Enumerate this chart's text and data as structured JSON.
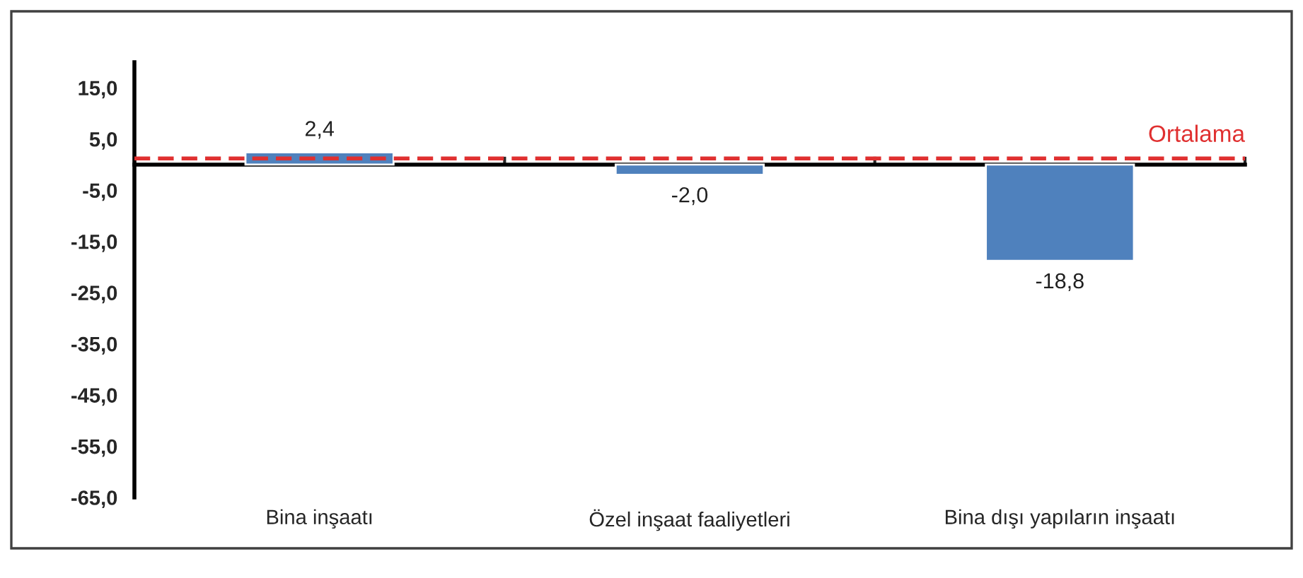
{
  "chart_data": {
    "type": "bar",
    "categories": [
      "Bina inşaatı",
      "Özel inşaat faaliyetleri",
      "Bina dışı yapıların inşaatı"
    ],
    "values": [
      2.4,
      -2.0,
      -18.8
    ],
    "value_labels": [
      "2,4",
      "-2,0",
      "-18,8"
    ],
    "color": "#4f81bd",
    "ylim": [
      -65,
      20
    ],
    "yticks": [
      {
        "value": 15,
        "label": "15,0"
      },
      {
        "value": 5,
        "label": "5,0"
      },
      {
        "value": -5,
        "label": "-5,0"
      },
      {
        "value": -15,
        "label": "-15,0"
      },
      {
        "value": -25,
        "label": "-25,0"
      },
      {
        "value": -35,
        "label": "-35,0"
      },
      {
        "value": -45,
        "label": "-45,0"
      },
      {
        "value": -55,
        "label": "-55,0"
      },
      {
        "value": -65,
        "label": "-65,0"
      }
    ],
    "ref_lines": [
      {
        "axis": "y",
        "value": 1.2,
        "label": "Ortalama",
        "color": "#e03030",
        "line_style": "dashed"
      }
    ],
    "grid": false,
    "legend": false
  }
}
